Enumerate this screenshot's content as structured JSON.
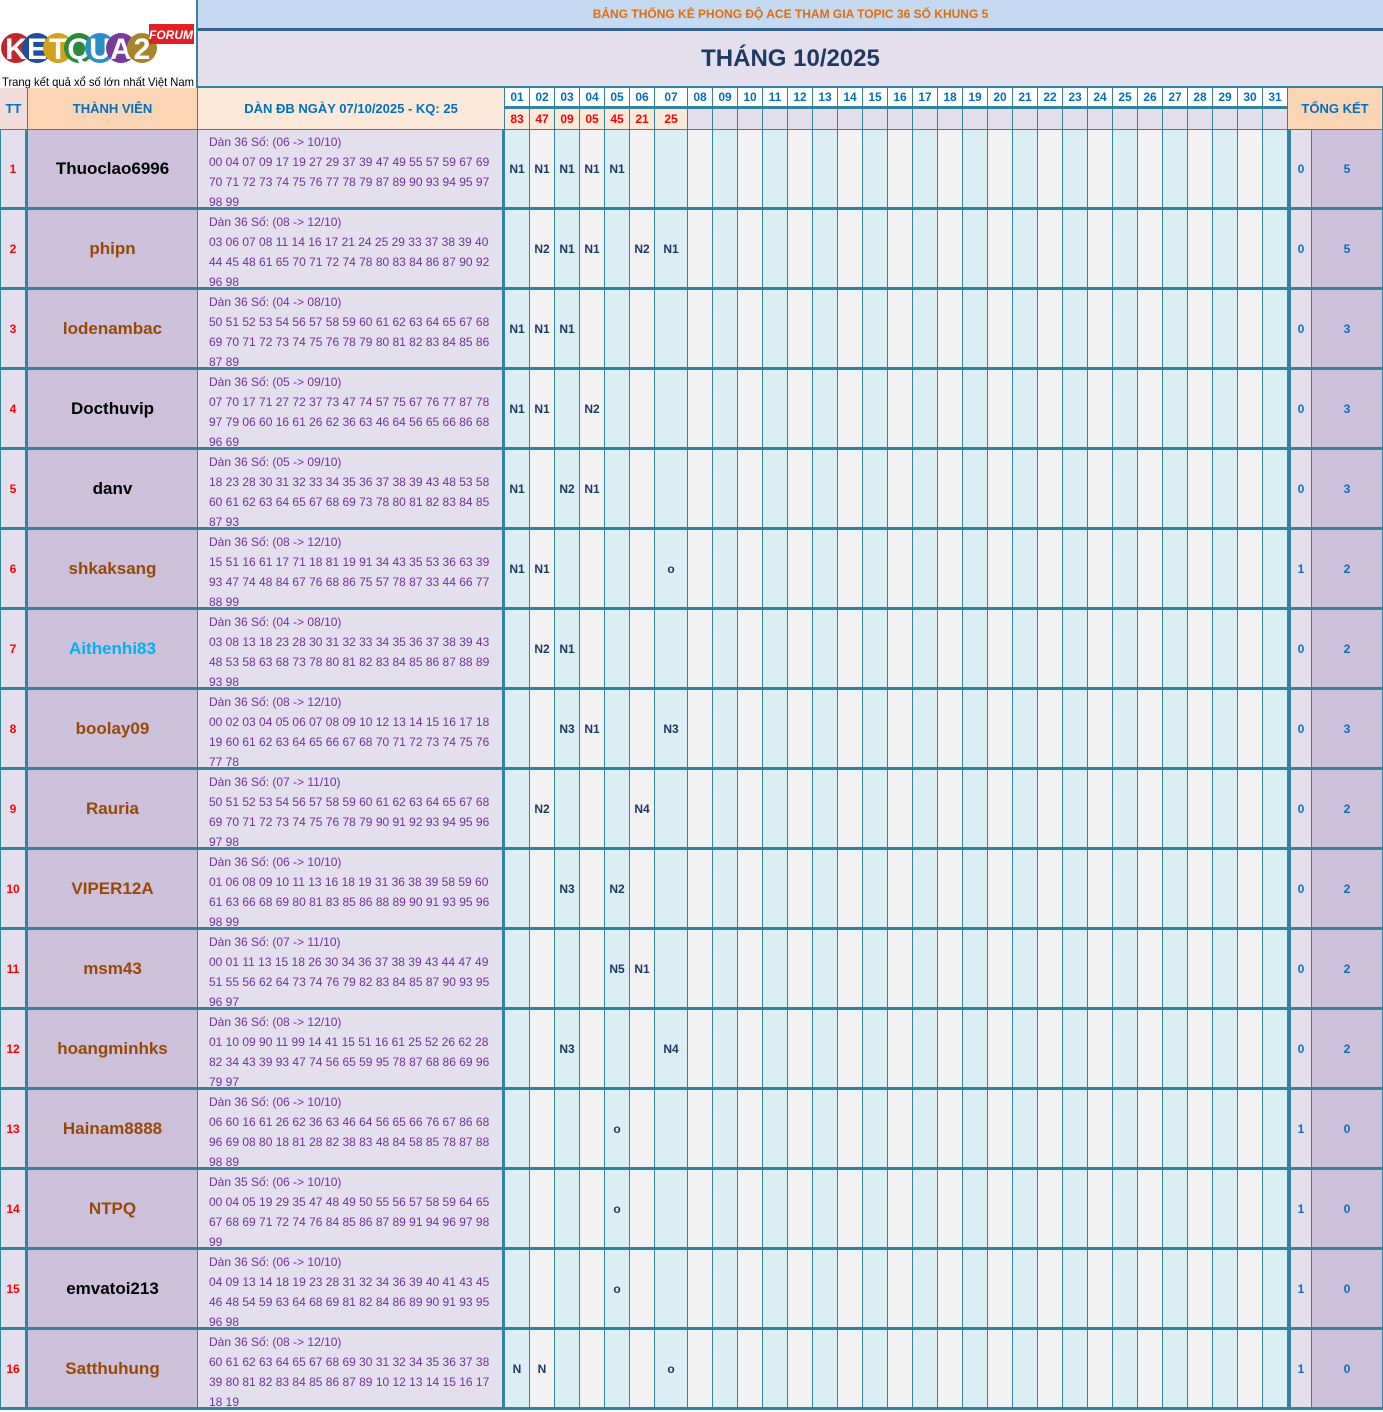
{
  "logo": {
    "brand": "KETQUA2",
    "badge": "FORUM",
    "tagline": "Trang kết quả xổ số lớn nhất Việt Nam"
  },
  "header": {
    "title": "BẢNG THỐNG KÊ PHONG ĐỘ ACE THAM GIA TOPIC 36 SỐ KHUNG 5",
    "month": "THÁNG 10/2025",
    "tt": "TT",
    "member": "THÀNH VIÊN",
    "dan": "DÀN ĐB NGÀY 07/10/2025 - KQ: 25",
    "summary": "TỔNG KẾT"
  },
  "days": [
    "01",
    "02",
    "03",
    "04",
    "05",
    "06",
    "07",
    "08",
    "09",
    "10",
    "11",
    "12",
    "13",
    "14",
    "15",
    "16",
    "17",
    "18",
    "19",
    "20",
    "21",
    "22",
    "23",
    "24",
    "25",
    "26",
    "27",
    "28",
    "29",
    "30",
    "31"
  ],
  "results": [
    "83",
    "47",
    "09",
    "05",
    "45",
    "21",
    "25"
  ],
  "colors": {
    "border": "#31849b",
    "name_black": "#000000",
    "name_brown": "#984807",
    "name_blue": "#00b0f0",
    "dan_text": "#7030a0",
    "result": "#ff0000"
  },
  "rows": [
    {
      "tt": "1",
      "name": "Thuoclao6996",
      "color": "#000000",
      "dan_title": "Dàn 36 Số: (06 -> 10/10)",
      "lines": [
        "00 04 07 09 17 19 27 29 37 39 47 49 55 57 59 67 69",
        "70 71 72 73 74 75 76 77 78 79 87 89 90 93 94 95 97",
        "98 99"
      ],
      "marks": [
        "N1",
        "N1",
        "N1",
        "N1",
        "N1",
        "",
        ""
      ],
      "total_a": "0",
      "total_b": "5"
    },
    {
      "tt": "2",
      "name": "phipn",
      "color": "#984807",
      "dan_title": "Dàn 36 Số: (08 -> 12/10)",
      "lines": [
        "03 06 07 08 11 14 16 17 21 24 25 29 33 37 38 39 40",
        "44 45 48 61 65 70 71 72 74 78 80 83 84 86 87 90 92",
        "96 98"
      ],
      "marks": [
        "",
        "N2",
        "N1",
        "N1",
        "",
        "N2",
        "N1"
      ],
      "total_a": "0",
      "total_b": "5"
    },
    {
      "tt": "3",
      "name": "lodenambac",
      "color": "#984807",
      "dan_title": "Dàn 36 Số: (04 -> 08/10)",
      "lines": [
        "50 51 52 53 54 56 57 58 59 60 61 62 63 64 65 67 68",
        "69 70 71 72 73 74 75 76 78 79 80 81 82 83 84 85 86",
        "87 89"
      ],
      "marks": [
        "N1",
        "N1",
        "N1",
        "",
        "",
        "",
        ""
      ],
      "total_a": "0",
      "total_b": "3"
    },
    {
      "tt": "4",
      "name": "Docthuvip",
      "color": "#000000",
      "dan_title": "Dàn 36 Số: (05 -> 09/10)",
      "lines": [
        "07 70 17 71 27 72 37 73 47 74 57 75 67 76 77 87 78",
        "97 79 06 60 16 61 26 62 36 63 46 64 56 65 66 86 68",
        "96 69"
      ],
      "marks": [
        "N1",
        "N1",
        "",
        "N2",
        "",
        "",
        ""
      ],
      "total_a": "0",
      "total_b": "3"
    },
    {
      "tt": "5",
      "name": "danv",
      "color": "#000000",
      "dan_title": "Dàn 36 Số: (05 -> 09/10)",
      "lines": [
        "18 23 28 30 31 32 33 34 35 36 37 38 39 43 48 53 58",
        "60 61 62 63 64 65 67 68 69 73 78 80 81 82 83 84 85",
        "87 93"
      ],
      "marks": [
        "N1",
        "",
        "N2",
        "N1",
        "",
        "",
        ""
      ],
      "total_a": "0",
      "total_b": "3"
    },
    {
      "tt": "6",
      "name": "shkaksang",
      "color": "#984807",
      "dan_title": "Dàn 36 Số: (08 -> 12/10)",
      "lines": [
        "15 51 16 61 17 71 18 81 19 91 34 43 35 53 36 63 39",
        "93 47 74 48 84 67 76 68 86 75 57 78 87 33 44 66 77",
        "88 99"
      ],
      "marks": [
        "N1",
        "N1",
        "",
        "",
        "",
        "",
        "o"
      ],
      "total_a": "1",
      "total_b": "2"
    },
    {
      "tt": "7",
      "name": "Aithenhi83",
      "color": "#00b0f0",
      "dan_title": "Dàn 36 Số: (04 -> 08/10)",
      "lines": [
        "03 08 13 18 23 28 30 31 32 33 34 35 36 37 38 39 43",
        "48 53 58 63 68 73 78 80 81 82 83 84 85 86 87 88 89",
        "93 98"
      ],
      "marks": [
        "",
        "N2",
        "N1",
        "",
        "",
        "",
        ""
      ],
      "total_a": "0",
      "total_b": "2"
    },
    {
      "tt": "8",
      "name": "boolay09",
      "color": "#984807",
      "dan_title": "Dàn 36 Số: (08 -> 12/10)",
      "lines": [
        "00 02 03 04 05 06 07 08 09 10 12 13 14 15 16 17 18",
        "19 60 61 62 63 64 65 66 67 68 70 71 72 73 74 75 76",
        "77 78"
      ],
      "marks": [
        "",
        "",
        "N3",
        "N1",
        "",
        "",
        "N3"
      ],
      "total_a": "0",
      "total_b": "3"
    },
    {
      "tt": "9",
      "name": "Rauria",
      "color": "#984807",
      "dan_title": "Dàn 36 Số: (07 -> 11/10)",
      "lines": [
        "50 51 52 53 54 56 57 58 59 60 61 62 63 64 65 67 68",
        "69 70 71 72 73 74 75 76 78 79 90 91 92 93 94 95 96",
        "97 98"
      ],
      "marks": [
        "",
        "N2",
        "",
        "",
        "",
        "N4",
        ""
      ],
      "total_a": "0",
      "total_b": "2"
    },
    {
      "tt": "10",
      "name": "VIPER12A",
      "color": "#984807",
      "dan_title": "Dàn 36 Số: (06 -> 10/10)",
      "lines": [
        "01 06 08 09 10 11 13 16 18 19 31 36 38 39 58 59 60",
        "61 63 66 68 69 80 81 83 85 86 88 89 90 91 93 95 96",
        "98 99"
      ],
      "marks": [
        "",
        "",
        "N3",
        "",
        "N2",
        "",
        ""
      ],
      "total_a": "0",
      "total_b": "2"
    },
    {
      "tt": "11",
      "name": "msm43",
      "color": "#984807",
      "dan_title": "Dàn 36 Số: (07 -> 11/10)",
      "lines": [
        "00 01 11 13 15 18 26 30 34 36 37 38 39 43 44 47 49",
        "51 55 56 62 64 73 74 76 79 82 83 84 85 87 90 93 95",
        "96 97"
      ],
      "marks": [
        "",
        "",
        "",
        "",
        "N5",
        "N1",
        ""
      ],
      "total_a": "0",
      "total_b": "2"
    },
    {
      "tt": "12",
      "name": "hoangminhks",
      "color": "#984807",
      "dan_title": "Dàn 36 Số: (08 -> 12/10)",
      "lines": [
        "01 10 09 90 11 99 14 41 15 51 16 61 25 52 26 62 28",
        "82 34 43 39 93 47 74 56 65 59 95 78 87 68 86 69 96",
        "79 97"
      ],
      "marks": [
        "",
        "",
        "N3",
        "",
        "",
        "",
        "N4"
      ],
      "total_a": "0",
      "total_b": "2"
    },
    {
      "tt": "13",
      "name": "Hainam8888",
      "color": "#984807",
      "dan_title": "Dàn 36 Số: (06 -> 10/10)",
      "lines": [
        "06 60 16 61 26 62 36 63 46 64 56 65 66 76 67 86 68",
        "96 69 08 80 18 81 28 82 38 83 48 84 58 85 78 87 88",
        "98 89"
      ],
      "marks": [
        "",
        "",
        "",
        "",
        "o",
        "",
        ""
      ],
      "total_a": "1",
      "total_b": "0"
    },
    {
      "tt": "14",
      "name": "NTPQ",
      "color": "#984807",
      "dan_title": "Dàn 35 Số: (06 -> 10/10)",
      "lines": [
        "00 04 05 19 29 35 47 48 49 50 55 56 57 58 59 64 65",
        "67 68 69 71 72 74 76 84 85 86 87 89 91 94 96 97 98",
        "99"
      ],
      "marks": [
        "",
        "",
        "",
        "",
        "o",
        "",
        ""
      ],
      "total_a": "1",
      "total_b": "0"
    },
    {
      "tt": "15",
      "name": "emvatoi213",
      "color": "#000000",
      "dan_title": "Dàn 36 Số: (06 -> 10/10)",
      "lines": [
        "04 09 13 14 18 19 23 28 31 32 34 36 39 40 41 43 45",
        "46 48 54 59 63 64 68 69 81 82 84 86 89 90 91 93 95",
        "96 98"
      ],
      "marks": [
        "",
        "",
        "",
        "",
        "o",
        "",
        ""
      ],
      "total_a": "1",
      "total_b": "0"
    },
    {
      "tt": "16",
      "name": "Satthuhung",
      "color": "#984807",
      "dan_title": "Dàn 36 Số: (08 -> 12/10)",
      "lines": [
        "60 61 62 63 64 65 67 68 69 30 31 32 34 35 36 37 38",
        "39 80 81 82 83 84 85 86 87 89 10 12 13 14 15 16 17",
        "18 19"
      ],
      "marks": [
        "N",
        "N",
        "",
        "",
        "",
        "",
        "o"
      ],
      "total_a": "1",
      "total_b": "0"
    }
  ]
}
